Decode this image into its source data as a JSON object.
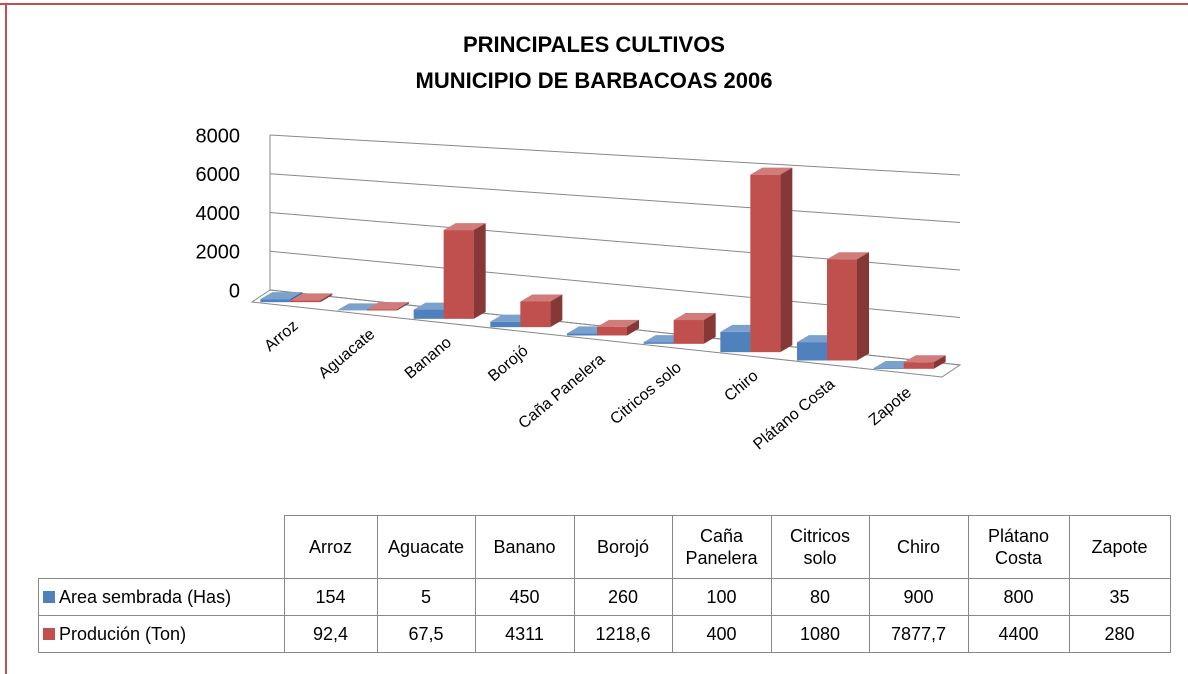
{
  "chart_data": {
    "type": "bar",
    "title": "PRINCIPALES CULTIVOS",
    "subtitle": "MUNICIPIO DE BARBACOAS 2006",
    "categories": [
      "Arroz",
      "Aguacate",
      "Banano",
      "Borojó",
      "Caña Panelera",
      "Citricos solo",
      "Chiro",
      "Plátano Costa",
      "Zapote"
    ],
    "series": [
      {
        "name": "Area sembrada (Has)",
        "color": "#4f81bd",
        "values": [
          154,
          5,
          450,
          260,
          100,
          80,
          900,
          800,
          35
        ]
      },
      {
        "name": "Produción (Ton)",
        "color": "#c0504d",
        "values": [
          92.4,
          67.5,
          4311,
          1218.6,
          400,
          1080,
          7877.7,
          4400,
          280
        ],
        "value_labels": [
          "92,4",
          "67,5",
          "4311",
          "1218,6",
          "400",
          "1080",
          "7877,7",
          "4400",
          "280"
        ]
      }
    ],
    "ylim": [
      0,
      8000
    ],
    "yticks": [
      0,
      2000,
      4000,
      6000,
      8000
    ],
    "grid": true
  }
}
